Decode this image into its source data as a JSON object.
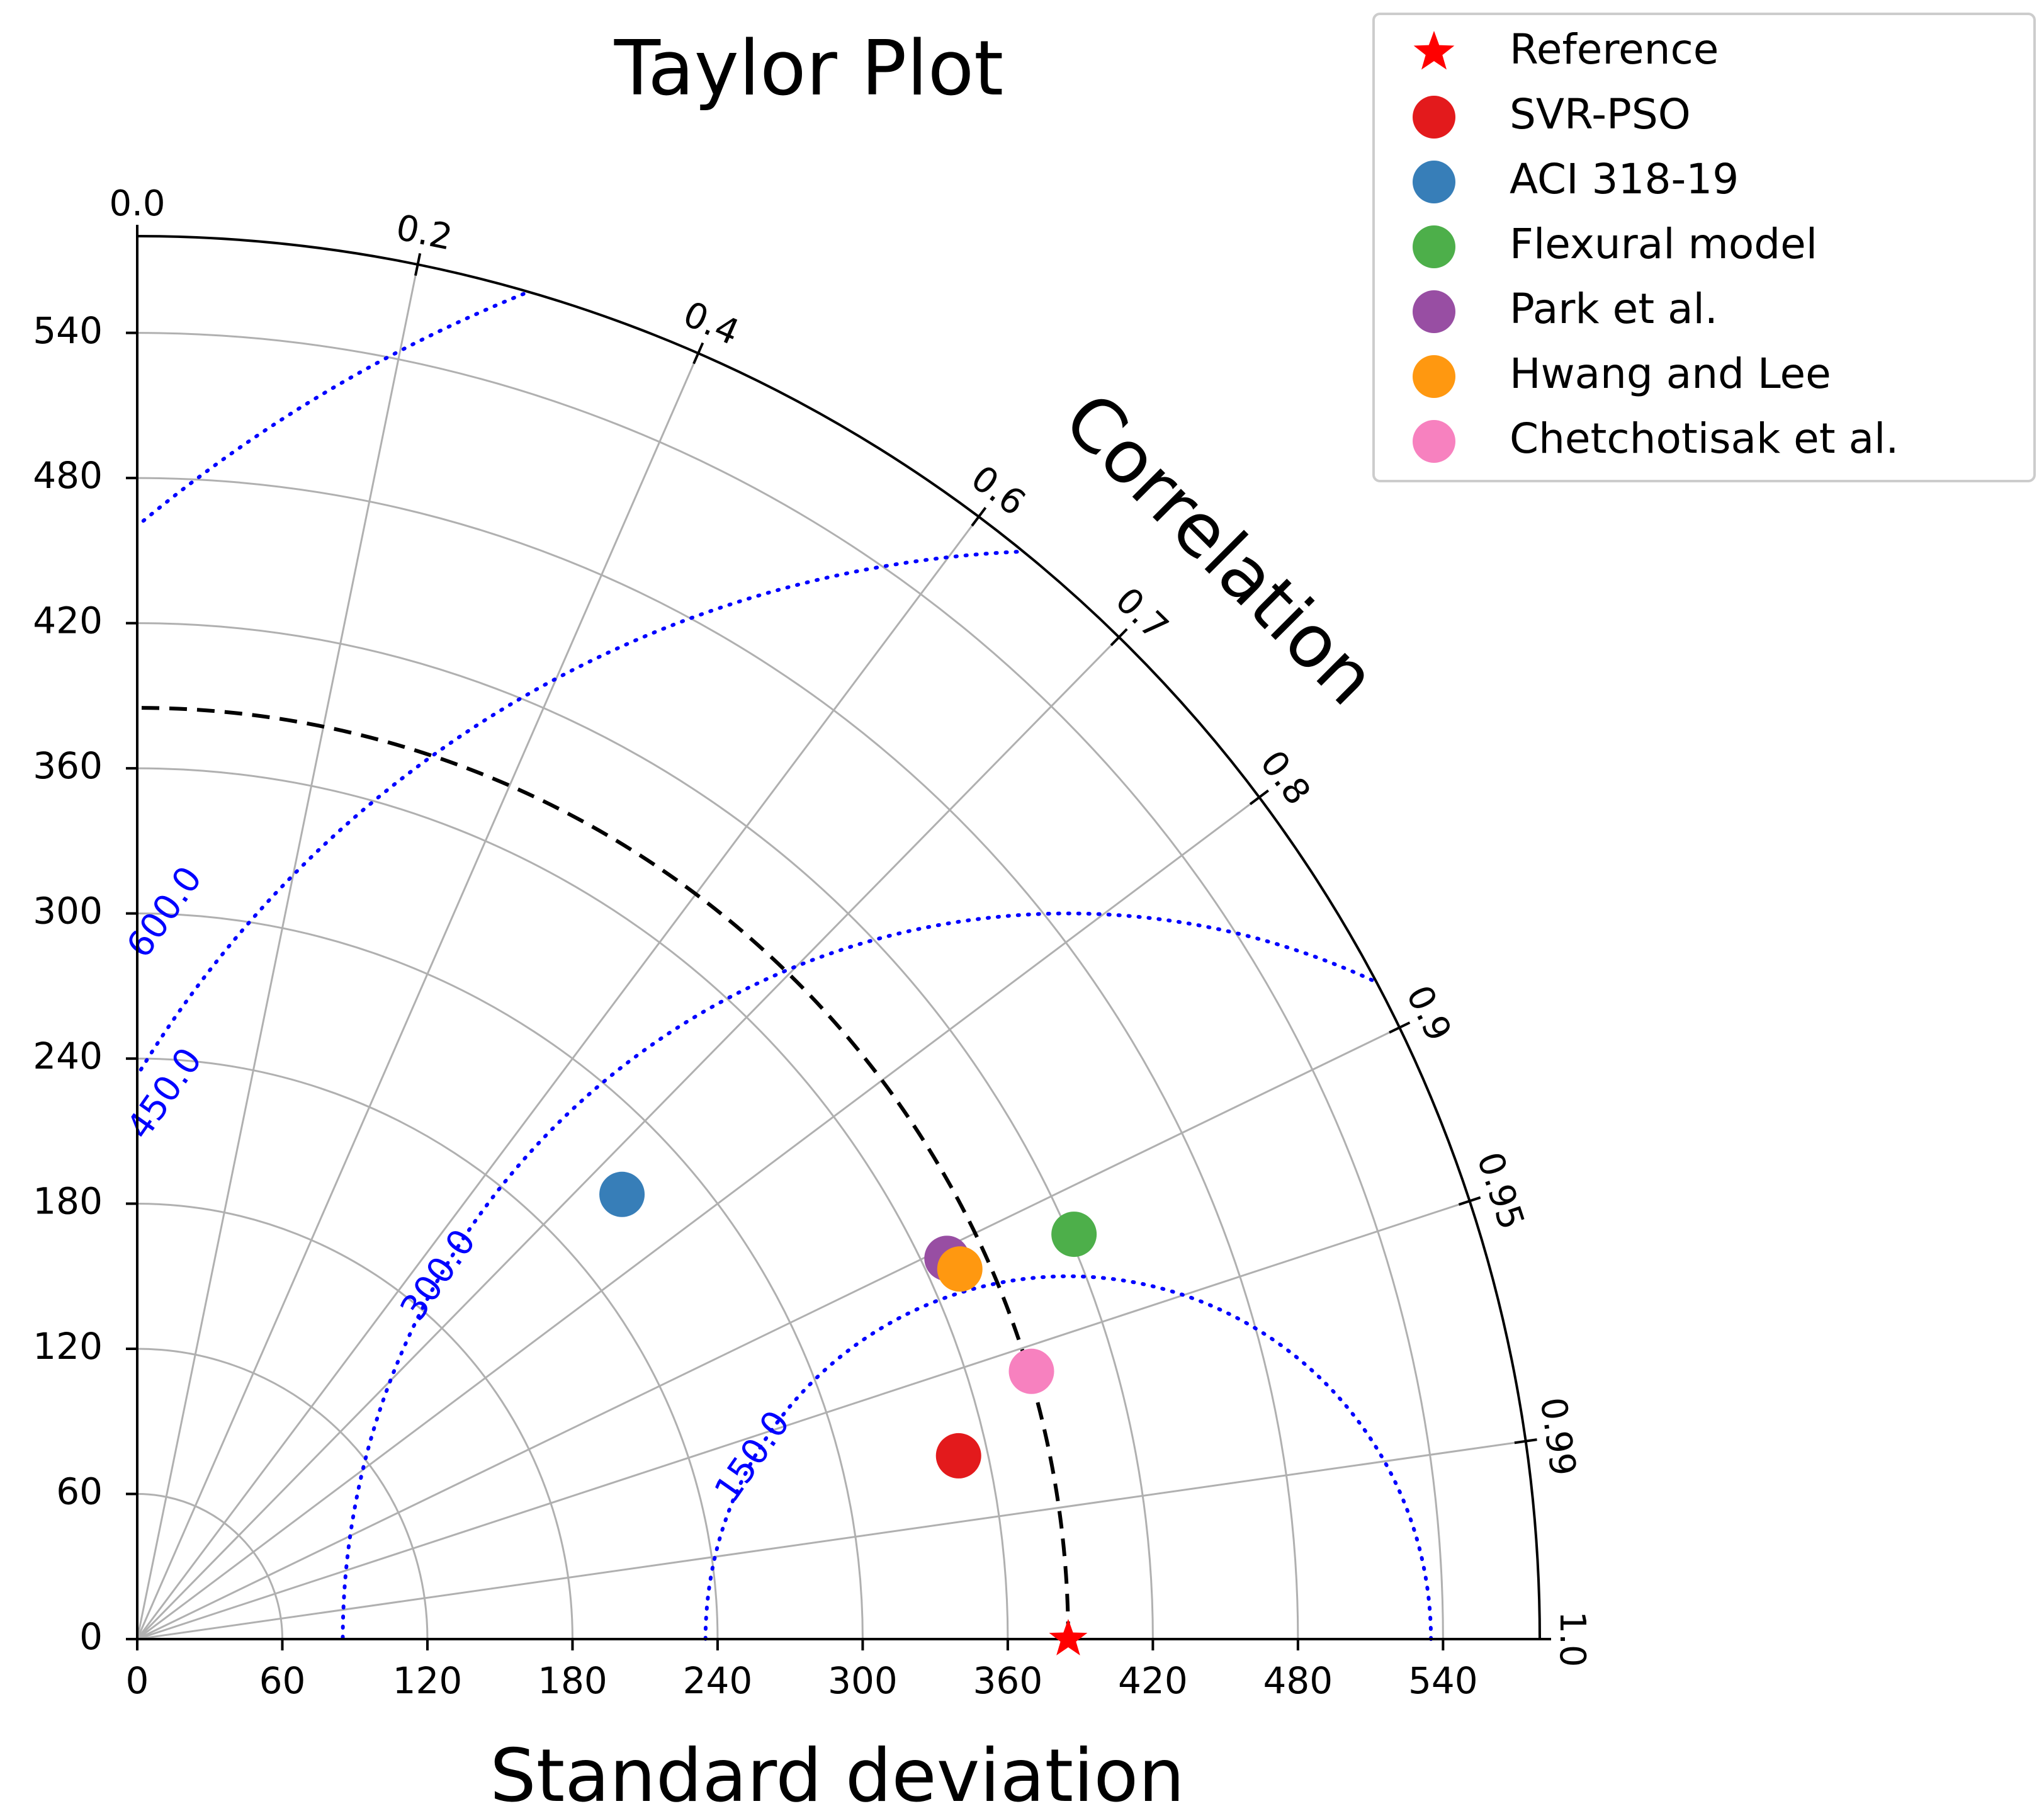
{
  "chart_data": {
    "type": "scatter",
    "subtype": "taylor-diagram",
    "title": "Taylor Plot",
    "xlabel": "Standard deviation",
    "corr_label": "Correlation",
    "std_range": [
      0,
      580
    ],
    "std_ticks": [
      0,
      60,
      120,
      180,
      240,
      300,
      360,
      420,
      480,
      540
    ],
    "std_tick_labels": [
      "0",
      "60",
      "120",
      "180",
      "240",
      "300",
      "360",
      "420",
      "480",
      "540"
    ],
    "corr_ticks": [
      0.0,
      0.2,
      0.4,
      0.6,
      0.7,
      0.8,
      0.9,
      0.95,
      0.99,
      1.0
    ],
    "corr_tick_labels": [
      "0.0",
      "0.2",
      "0.4",
      "0.6",
      "0.7",
      "0.8",
      "0.9",
      "0.95",
      "0.99",
      "1.0"
    ],
    "rmsd_contours": [
      150,
      300,
      450,
      600
    ],
    "rmsd_labels": [
      "150.0",
      "300.0",
      "450.0",
      "600.0"
    ],
    "grid": true,
    "legend_position": "top-right",
    "reference": {
      "name": "Reference",
      "std": 385,
      "corr": 1.0,
      "color": "#ff0000",
      "marker": "star"
    },
    "series": [
      {
        "name": "SVR-PSO",
        "std": 348,
        "corr": 0.976,
        "color": "#e31a1c"
      },
      {
        "name": "ACI 318-19",
        "std": 272,
        "corr": 0.737,
        "color": "#377eb8"
      },
      {
        "name": "Flexural model",
        "std": 422,
        "corr": 0.918,
        "color": "#4daf4a"
      },
      {
        "name": "Park et al.",
        "std": 370,
        "corr": 0.905,
        "color": "#984ea3"
      },
      {
        "name": "Hwang and Lee",
        "std": 373,
        "corr": 0.912,
        "color": "#ff9810"
      },
      {
        "name": "Chetchotisak et al.",
        "std": 386,
        "corr": 0.958,
        "color": "#f781bf"
      }
    ],
    "legend": [
      "Reference",
      "SVR-PSO",
      "ACI 318-19",
      "Flexural model",
      "Park et al.",
      "Hwang and Lee",
      "Chetchotisak et al."
    ]
  }
}
